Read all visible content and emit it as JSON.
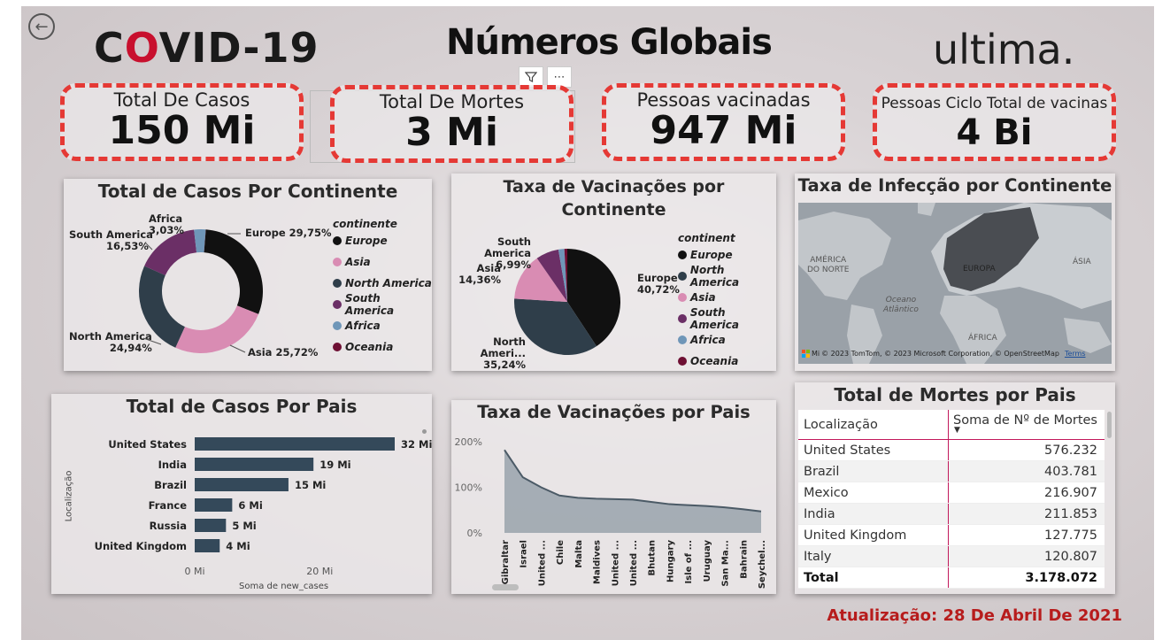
{
  "header": {
    "covid_logo_pre": "C",
    "covid_logo_o": "O",
    "covid_logo_post": "VID-19",
    "title": "Números Globais",
    "brand": "ultima."
  },
  "visual_header": {
    "more_label": "⋯"
  },
  "kpis": [
    {
      "label": "Total De Casos",
      "value": "150 Mi"
    },
    {
      "label": "Total De Mortes",
      "value": "3 Mi"
    },
    {
      "label": "Pessoas vacinadas",
      "value": "947 Mi"
    },
    {
      "label": "Pessoas Ciclo Total de vacinas",
      "value": "4 Bi"
    }
  ],
  "cases_by_continent": {
    "title": "Total de Casos Por Continente",
    "legend_title": "continente",
    "chart_data": {
      "type": "pie",
      "donut": true,
      "categories": [
        "Europe",
        "Asia",
        "North America",
        "South America",
        "Africa",
        "Oceania"
      ],
      "values": [
        29.75,
        25.72,
        24.94,
        16.53,
        3.03,
        0.03
      ],
      "colors": [
        "#111111",
        "#d98cb3",
        "#2f3e4a",
        "#6b2f66",
        "#6f96b8",
        "#6e0f33"
      ]
    },
    "labels": {
      "europe": "Europe 29,75%",
      "asia": "Asia 25,72%",
      "north_america_name": "North America",
      "north_america_pct": "24,94%",
      "south_america_name": "South America",
      "south_america_pct": "16,53%",
      "africa_name": "Africa",
      "africa_pct": "3,03%"
    }
  },
  "vaccination_by_continent": {
    "title_line1": "Taxa de Vacinações por",
    "title_line2": "Continente",
    "legend_title": "continent",
    "chart_data": {
      "type": "pie",
      "categories": [
        "Europe",
        "North America",
        "Asia",
        "South America",
        "Africa",
        "Oceania"
      ],
      "values": [
        40.72,
        35.24,
        14.36,
        6.99,
        1.8,
        0.89
      ],
      "colors": [
        "#111111",
        "#2f3e4a",
        "#d98cb3",
        "#6b2f66",
        "#6f96b8",
        "#6e0f33"
      ]
    },
    "labels": {
      "europe_name": "Europe",
      "europe_pct": "40,72%",
      "north_america_name": "North Ameri...",
      "north_america_pct": "35,24%",
      "asia_name": "Asia",
      "asia_pct": "14,36%",
      "south_america_name": "South America",
      "south_america_pct": "6,99%"
    }
  },
  "infection_map": {
    "title": "Taxa de Infecção por Continente",
    "region_labels": {
      "north_america_1": "AMÉRICA",
      "north_america_2": "DO NORTE",
      "europe": "EUROPA",
      "asia": "ÁSIA",
      "ocean_1": "Oceano",
      "ocean_2": "Atlântico",
      "africa": "ÁFRICA"
    },
    "attribution": "© 2023 TomTom, © 2023 Microsoft Corporation, © OpenStreetMap",
    "terms": "Terms",
    "ms_logo_text": "Mi"
  },
  "cases_by_country": {
    "title": "Total de Casos Por Pais",
    "ylabel": "Localização",
    "xlabel": "Soma de new_cases",
    "chart_data": {
      "type": "bar",
      "orientation": "horizontal",
      "categories": [
        "United States",
        "India",
        "Brazil",
        "France",
        "Russia",
        "United Kingdom"
      ],
      "values": [
        32,
        19,
        15,
        6,
        5,
        4
      ],
      "value_labels": [
        "32 Mi",
        "19 Mi",
        "15 Mi",
        "6 Mi",
        "5 Mi",
        "4 Mi"
      ],
      "xlim": [
        0,
        32
      ],
      "x_ticks": [
        "0 Mi",
        "20 Mi"
      ],
      "color": "#34495a"
    }
  },
  "vaccination_by_country": {
    "title": "Taxa de Vacinações por Pais",
    "chart_data": {
      "type": "area",
      "categories": [
        "Gibraltar",
        "Israel",
        "United ...",
        "Chile",
        "Malta",
        "Maldives",
        "United ...",
        "United ...",
        "Bhutan",
        "Hungary",
        "Isle of ...",
        "Uruguay",
        "San Ma...",
        "Bahrain",
        "Seychel..."
      ],
      "values": [
        182,
        122,
        100,
        82,
        77,
        75,
        74,
        73,
        68,
        63,
        61,
        59,
        56,
        52,
        47
      ],
      "y_ticks": [
        "0%",
        "100%",
        "200%"
      ],
      "ylim": [
        0,
        200
      ],
      "color": "#6e7f8d"
    }
  },
  "deaths_table": {
    "title": "Total de Mortes por Pais",
    "col1": "Localização",
    "col2": "Soma de Nº de Mortes",
    "rows": [
      {
        "name": "United States",
        "value": "576.232"
      },
      {
        "name": "Brazil",
        "value": "403.781"
      },
      {
        "name": "Mexico",
        "value": "216.907"
      },
      {
        "name": "India",
        "value": "211.853"
      },
      {
        "name": "United Kingdom",
        "value": "127.775"
      },
      {
        "name": "Italy",
        "value": "120.807"
      }
    ],
    "total_label": "Total",
    "total_value": "3.178.072"
  },
  "footer": {
    "updated": "Atualização:  28 De Abril De 2021"
  }
}
